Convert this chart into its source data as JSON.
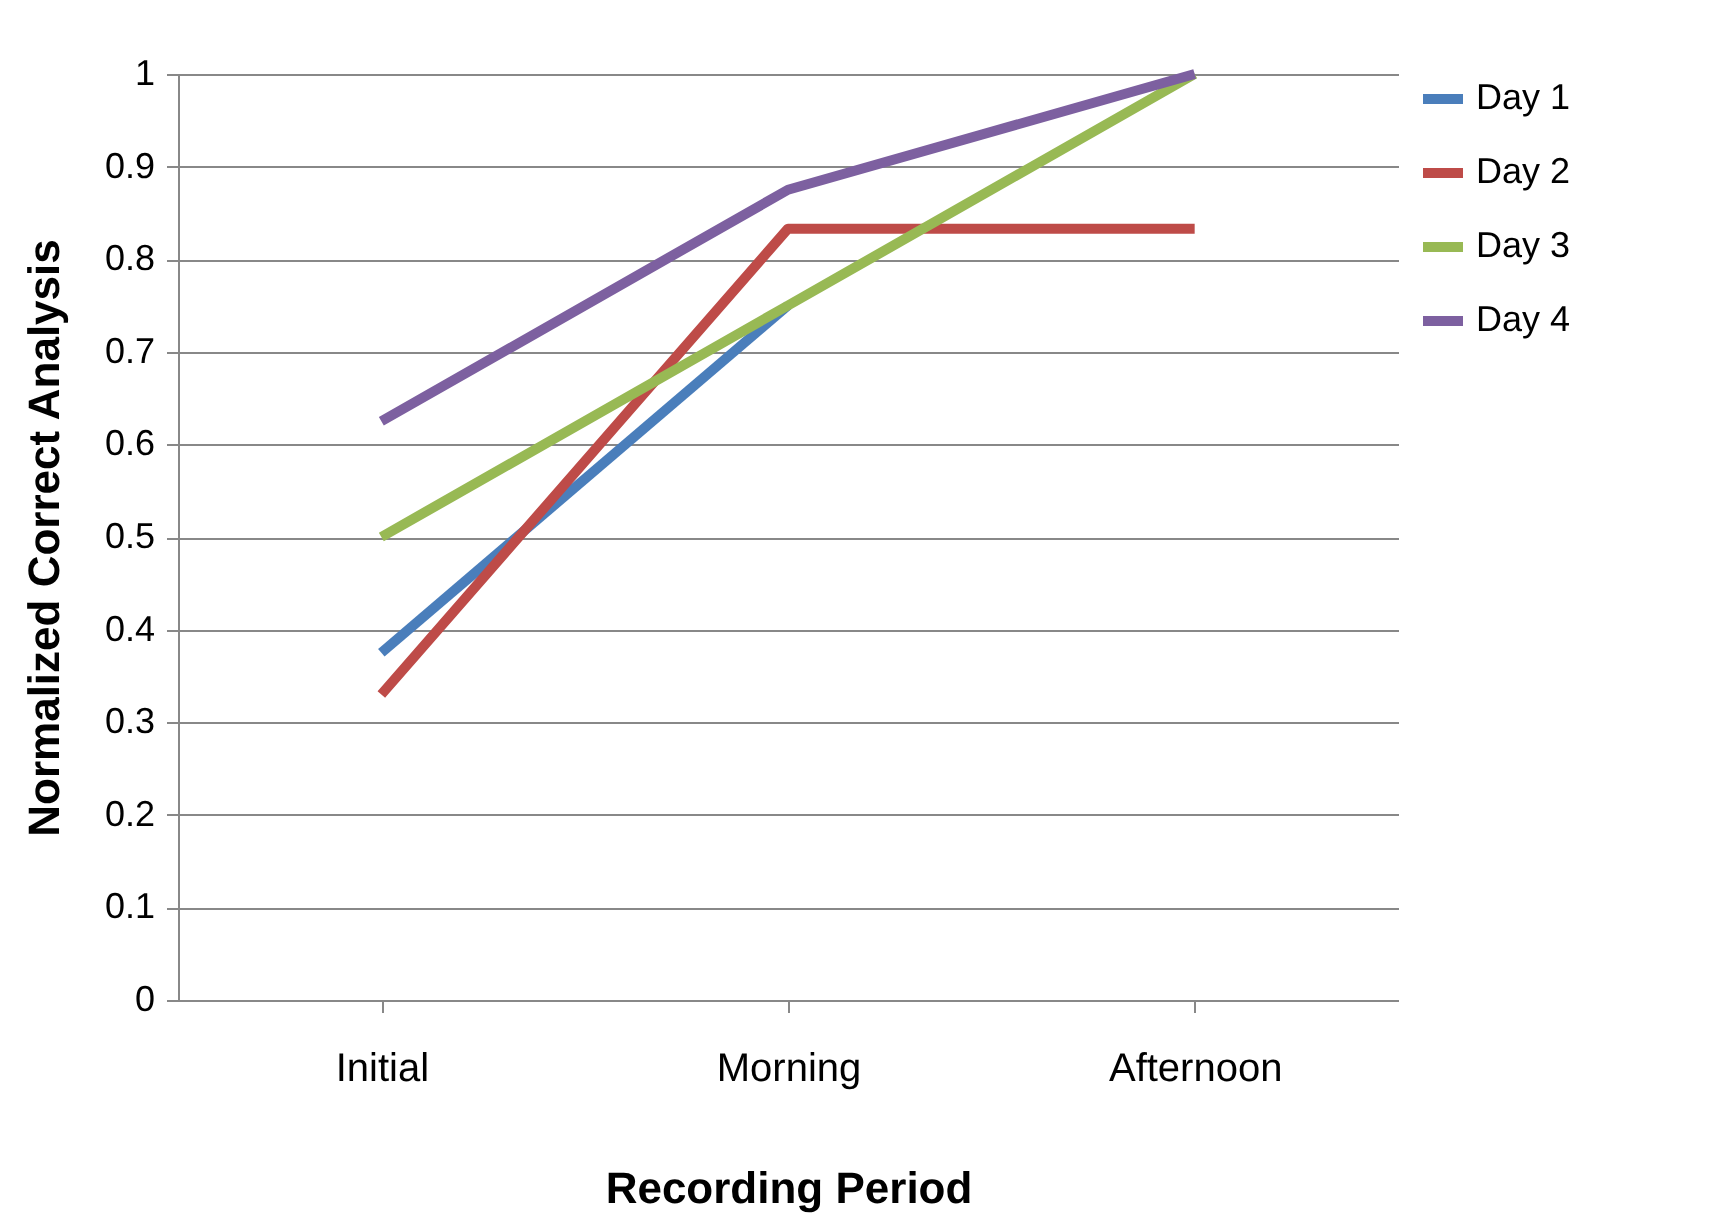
{
  "chart_data": {
    "type": "line",
    "xlabel": "Recording Period",
    "ylabel": "Normalized Correct Analysis",
    "categories": [
      "Initial",
      "Morning",
      "Afternoon"
    ],
    "series": [
      {
        "name": "Day 1",
        "color": "#4a7ebb",
        "values": [
          0.375,
          0.75,
          null
        ]
      },
      {
        "name": "Day 2",
        "color": "#be4b48",
        "values": [
          0.33,
          0.833,
          0.833
        ]
      },
      {
        "name": "Day 3",
        "color": "#98b954",
        "values": [
          0.5,
          0.75,
          1
        ]
      },
      {
        "name": "Day 4",
        "color": "#7d60a0",
        "values": [
          0.625,
          0.875,
          1
        ]
      }
    ],
    "ylim": [
      0,
      1
    ],
    "yticks": [
      0,
      0.1,
      0.2,
      0.3,
      0.4,
      0.5,
      0.6,
      0.7,
      0.8,
      0.9,
      1
    ],
    "grid": "y",
    "legend": "right",
    "marker": "none",
    "line_style": "solid"
  }
}
